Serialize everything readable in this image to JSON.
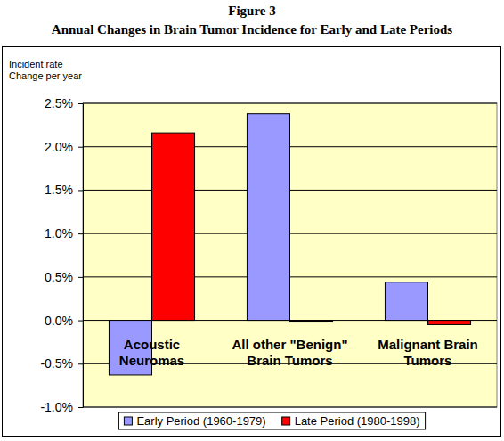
{
  "chart_data": {
    "type": "bar",
    "title": "Figure 3",
    "subtitle": "Annual Changes in Brain Tumor Incidence for Early and Late Periods",
    "y_label": "Incident rate\nChange per year",
    "categories": [
      "Acoustic\nNeuromas",
      "All other \"Benign\"\nBrain Tumors",
      "Malignant Brain\nTumors"
    ],
    "series": [
      {
        "name": "Early Period (1960-1979)",
        "color": "#9999ff",
        "values": [
          -0.63,
          2.38,
          0.44
        ]
      },
      {
        "name": "Late Period (1980-1998)",
        "color": "#ff0000",
        "values": [
          2.16,
          -0.01,
          -0.05
        ]
      }
    ],
    "ylim": [
      -1,
      2.5
    ],
    "yticks": [
      {
        "value": -1,
        "label": "-1.0%"
      },
      {
        "value": -0.5,
        "label": "-0.5%"
      },
      {
        "value": 0,
        "label": "0.0%"
      },
      {
        "value": 0.5,
        "label": "0.5%"
      },
      {
        "value": 1,
        "label": "1.0%"
      },
      {
        "value": 1.5,
        "label": "1.5%"
      },
      {
        "value": 2,
        "label": "2.0%"
      },
      {
        "value": 2.5,
        "label": "2.5%"
      }
    ],
    "grid": true,
    "legend": "bottom"
  }
}
